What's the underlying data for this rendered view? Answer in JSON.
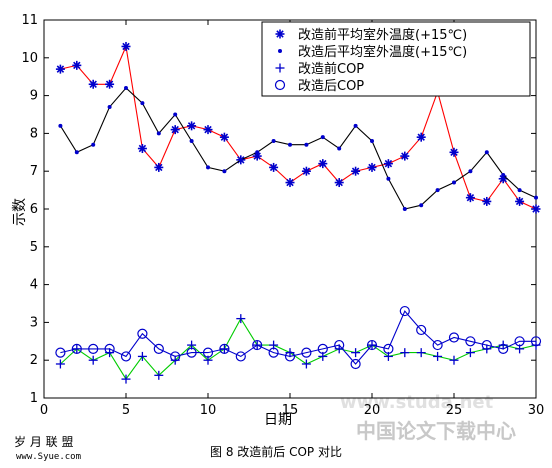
{
  "chart_data": {
    "type": "line",
    "xlabel": "日期",
    "ylabel": "示数",
    "xlim": [
      0,
      30
    ],
    "ylim": [
      1,
      11
    ],
    "xticks": [
      0,
      5,
      10,
      15,
      20,
      25,
      30
    ],
    "yticks": [
      1,
      2,
      3,
      4,
      5,
      6,
      7,
      8,
      9,
      10,
      11
    ],
    "grid": false,
    "legend_position": "top-right",
    "x": [
      1,
      2,
      3,
      4,
      5,
      6,
      7,
      8,
      9,
      10,
      11,
      12,
      13,
      14,
      15,
      16,
      17,
      18,
      19,
      20,
      21,
      22,
      23,
      24,
      25,
      26,
      27,
      28,
      29,
      30
    ],
    "series": [
      {
        "name": "改造前平均室外温度(+15℃)",
        "color": "#ff0000",
        "marker": "star",
        "marker_color": "#0000cc",
        "values": [
          9.7,
          9.8,
          9.3,
          9.3,
          10.3,
          7.6,
          7.1,
          8.1,
          8.2,
          8.1,
          7.9,
          7.3,
          7.4,
          7.1,
          6.7,
          7.0,
          7.2,
          6.7,
          7.0,
          7.1,
          7.2,
          7.4,
          7.9,
          9.1,
          7.5,
          6.3,
          6.2,
          6.8,
          6.2,
          6.0
        ]
      },
      {
        "name": "改造后平均室外温度(+15℃)",
        "color": "#000000",
        "marker": "dot",
        "marker_color": "#0000cc",
        "values": [
          8.2,
          7.5,
          7.7,
          8.7,
          9.2,
          8.8,
          8.0,
          8.5,
          7.8,
          7.1,
          7.0,
          7.3,
          7.5,
          7.8,
          7.7,
          7.7,
          7.9,
          7.6,
          8.2,
          7.8,
          6.8,
          6.0,
          6.1,
          6.5,
          6.7,
          7.0,
          7.5,
          6.9,
          6.5,
          6.3
        ]
      },
      {
        "name": "改造前COP",
        "color": "#00cc00",
        "marker": "plus",
        "marker_color": "#0000cc",
        "values": [
          1.9,
          2.3,
          2.0,
          2.2,
          1.5,
          2.1,
          1.6,
          2.0,
          2.4,
          2.0,
          2.3,
          3.1,
          2.4,
          2.4,
          2.2,
          1.9,
          2.1,
          2.3,
          2.2,
          2.4,
          2.1,
          2.2,
          2.2,
          2.1,
          2.0,
          2.2,
          2.3,
          2.4,
          2.3,
          2.4
        ]
      },
      {
        "name": "改造后COP",
        "color": "#0000cc",
        "marker": "circle",
        "marker_color": "#0000cc",
        "values": [
          2.2,
          2.3,
          2.3,
          2.3,
          2.1,
          2.7,
          2.3,
          2.1,
          2.2,
          2.2,
          2.3,
          2.1,
          2.4,
          2.2,
          2.1,
          2.2,
          2.3,
          2.4,
          1.9,
          2.4,
          2.3,
          3.3,
          2.8,
          2.4,
          2.6,
          2.5,
          2.4,
          2.3,
          2.5,
          2.5
        ]
      }
    ]
  },
  "caption": "图 8  改造前后 COP 对比",
  "logo": {
    "title": "岁 月 联 盟",
    "url": "www.Syue.com"
  },
  "watermark": {
    "text": "中国论文下载中心",
    "url": "www.studa.net"
  }
}
